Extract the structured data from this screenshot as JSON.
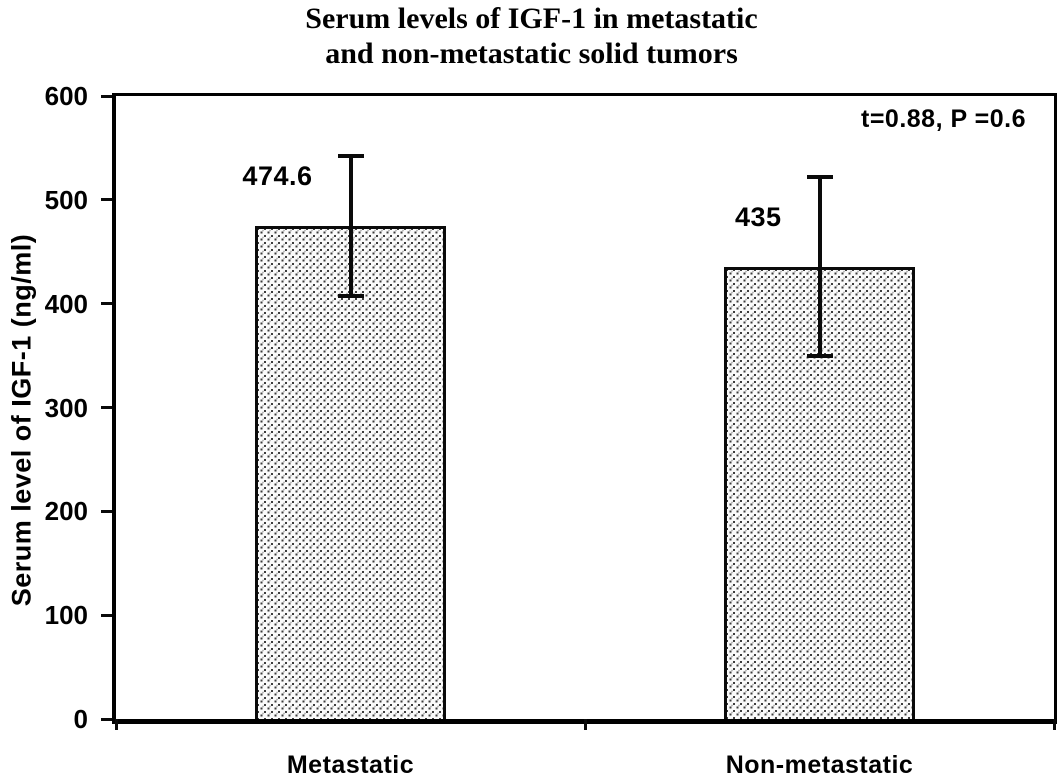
{
  "figure": {
    "title_line1": "Serum levels of IGF-1 in metastatic",
    "title_line2": "and non-metastatic solid tumors"
  },
  "chart_data": {
    "type": "bar",
    "title": "Serum levels of IGF-1 in metastatic and non-metastatic solid tumors",
    "categories": [
      "Metastatic",
      "Non-metastatic"
    ],
    "values": [
      474.6,
      435
    ],
    "value_labels": [
      "474.6",
      "435"
    ],
    "error_plus": [
      68,
      87
    ],
    "error_minus": [
      67,
      85
    ],
    "annotation": "t=0.88, P =0.6",
    "xlabel": "",
    "ylabel": "Serum level of IGF-1 (ng/ml)",
    "ylim": [
      0,
      600
    ],
    "yticks": [
      0,
      100,
      200,
      300,
      400,
      500,
      600
    ],
    "grid": false,
    "legend": "none",
    "colors": {
      "axis": "#000000",
      "bar_background": "#fafafa",
      "bar_dots": "#3c3c3c",
      "text": "#000000",
      "background": "#ffffff"
    }
  }
}
